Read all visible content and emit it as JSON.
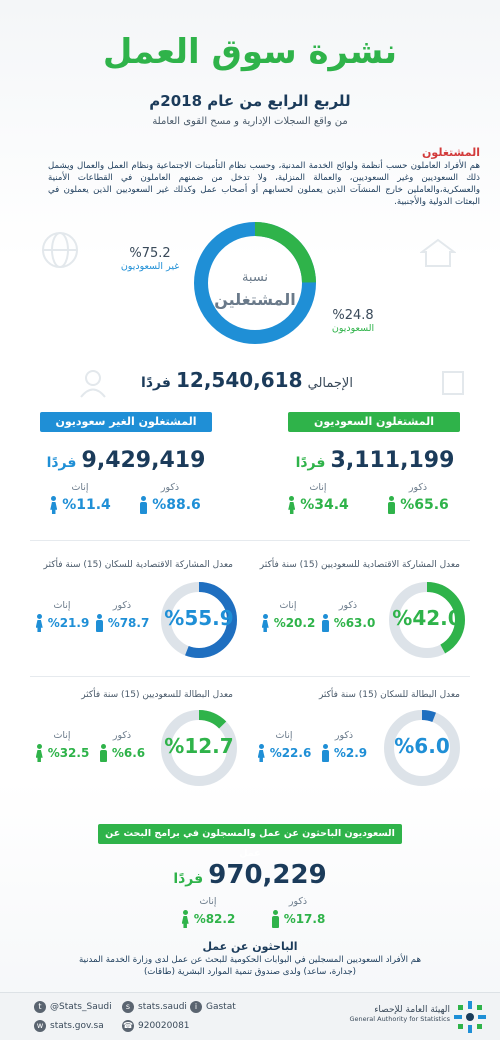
{
  "header": {
    "title": "نشرة سوق العمل",
    "subtitle": "للربع الرابع من عام 2018م",
    "source": "من واقع السجلات الإدارية و مسح القوى العاملة"
  },
  "definition": {
    "title": "المشتغلون",
    "body": "هم الأفراد العاملون حسب أنظمة ولوائح الخدمة المدنية، وحسب نظام التأمينات الاجتماعية ونظام العمل والعمال ويشمل ذلك السعوديين وغير السعوديين، والعمالة المنزلية، ولا تدخل من ضمنهم العاملون في القطاعات الأمنية والعسكرية،والعاملين خارج المنشآت الذين يعملون لحسابهم أو أصحاب عمل وكذلك غير السعوديين الذين يعملون في البعثات الدولية والأجنبية."
  },
  "employed_share": {
    "center_line1": "نسبة",
    "center_line2": "المشتغلين",
    "non_saudi_value": "%75.2",
    "non_saudi_label": "غير السعوديون",
    "saudi_value": "%24.8",
    "saudi_label": "السعوديون",
    "saudi_fraction": 0.248,
    "non_saudi_fraction": 0.752,
    "total_label": "الإجمالي",
    "total_value": "12,540,618",
    "total_unit": "فردًا"
  },
  "saudi_employed": {
    "banner": "المشتغلون السعوديون",
    "count": "3,111,199",
    "unit": "فردًا",
    "male_label": "ذكور",
    "male_value": "%65.6",
    "female_label": "إناث",
    "female_value": "%34.4"
  },
  "non_saudi_employed": {
    "banner": "المشتغلون الغير سعوديون",
    "count": "9,429,419",
    "unit": "فردًا",
    "male_label": "ذكور",
    "male_value": "%88.6",
    "female_label": "إناث",
    "female_value": "%11.4"
  },
  "participation_saudi": {
    "title": "معدل المشاركة الاقتصادية للسعوديين (15) سنة فأكثر",
    "value": "%42.0",
    "fraction": 0.42,
    "male_label": "ذكور",
    "male_value": "%63.0",
    "female_label": "إناث",
    "female_value": "%20.2"
  },
  "participation_all": {
    "title": "معدل المشاركة الاقتصادية للسكان (15) سنة فأكثر",
    "value": "%55.9",
    "fraction": 0.559,
    "male_label": "ذكور",
    "male_value": "%78.7",
    "female_label": "إناث",
    "female_value": "%21.9"
  },
  "unemployment_all": {
    "title": "معدل البطالة للسكان (15) سنة فأكثر",
    "value": "%6.0",
    "fraction": 0.06,
    "male_label": "ذكور",
    "male_value": "%2.9",
    "female_label": "إناث",
    "female_value": "%22.6"
  },
  "unemployment_saudi": {
    "title": "معدل البطالة للسعوديين (15) سنة فأكثر",
    "value": "%12.7",
    "fraction": 0.127,
    "male_label": "ذكور",
    "male_value": "%6.6",
    "female_label": "إناث",
    "female_value": "%32.5"
  },
  "job_seekers": {
    "banner": "السعوديون الباحثون عن عمل والمسجلون في برامج البحث عن عمل",
    "count": "970,229",
    "unit": "فردًا",
    "male_label": "ذكور",
    "male_value": "%17.8",
    "female_label": "إناث",
    "female_value": "%82.2",
    "def_title": "الباحثون عن عمل",
    "def_body": "هم الأفراد السعوديين المسجلين في البوابات الحكومية للبحث عن عمل لدى وزارة الخدمة المدنية (جدارة، ساعد) ولدى صندوق تنمية الموارد البشرية (طاقات)"
  },
  "footer": {
    "twitter": "@Stats_Saudi",
    "snapchat": "stats.saudi",
    "instagram": "Gastat",
    "website": "stats.gov.sa",
    "phone": "920020081",
    "org_ar": "الهيئة العامة للإحصاء",
    "org_en": "General Authority for Statistics"
  },
  "colors": {
    "green": "#2fb34a",
    "blue": "#1f8fd6",
    "navy": "#1b3b5a",
    "track": "#dde3e9"
  }
}
